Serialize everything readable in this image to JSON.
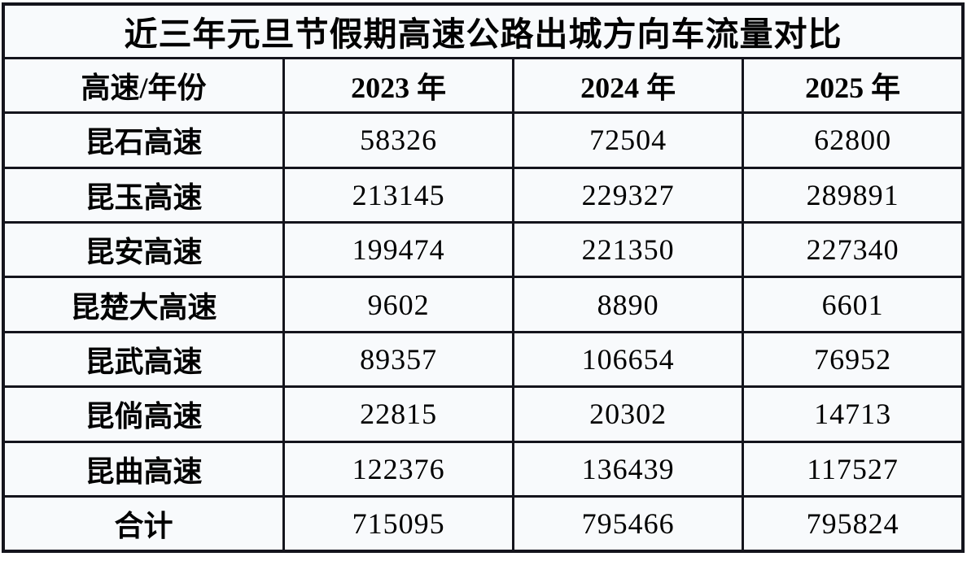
{
  "table": {
    "title": "近三年元旦节假期高速公路出城方向车流量对比",
    "columns": [
      "高速/年份",
      "2023 年",
      "2024 年",
      "2025 年"
    ],
    "rows": [
      {
        "label": "昆石高速",
        "values": [
          "58326",
          "72504",
          "62800"
        ]
      },
      {
        "label": "昆玉高速",
        "values": [
          "213145",
          "229327",
          "289891"
        ]
      },
      {
        "label": "昆安高速",
        "values": [
          "199474",
          "221350",
          "227340"
        ]
      },
      {
        "label": "昆楚大高速",
        "values": [
          "9602",
          "8890",
          "6601"
        ]
      },
      {
        "label": "昆武高速",
        "values": [
          "89357",
          "106654",
          "76952"
        ]
      },
      {
        "label": "昆倘高速",
        "values": [
          "22815",
          "20302",
          "14713"
        ]
      },
      {
        "label": "昆曲高速",
        "values": [
          "122376",
          "136439",
          "117527"
        ]
      }
    ],
    "total_row": {
      "label": "合计",
      "values": [
        "715095",
        "795466",
        "795824"
      ]
    },
    "colors": {
      "border": "#14141c",
      "cell_background": "#f8fafc",
      "page_background": "#ffffff",
      "text": "#000000"
    }
  }
}
